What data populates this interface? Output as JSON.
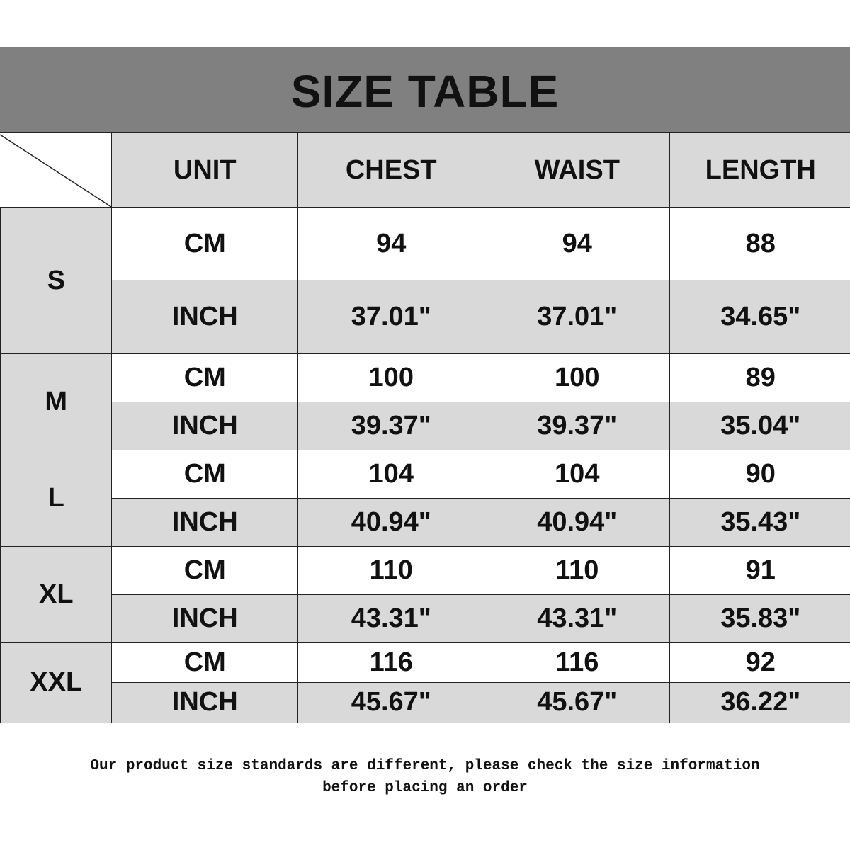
{
  "title": "SIZE TABLE",
  "colors": {
    "title_band": "#808080",
    "header_cell": "#d9d9d9",
    "inch_row": "#d9d9d9",
    "cm_row": "#ffffff"
  },
  "headers": [
    "UNIT",
    "CHEST",
    "WAIST",
    "LENGTH"
  ],
  "sizes": [
    {
      "size": "S",
      "rows": [
        [
          "CM",
          "94",
          "94",
          "88"
        ],
        [
          "INCH",
          "37.01\"",
          "37.01\"",
          "34.65\""
        ]
      ]
    },
    {
      "size": "M",
      "rows": [
        [
          "CM",
          "100",
          "100",
          "89"
        ],
        [
          "INCH",
          "39.37\"",
          "39.37\"",
          "35.04\""
        ]
      ]
    },
    {
      "size": "L",
      "rows": [
        [
          "CM",
          "104",
          "104",
          "90"
        ],
        [
          "INCH",
          "40.94\"",
          "40.94\"",
          "35.43\""
        ]
      ]
    },
    {
      "size": "XL",
      "rows": [
        [
          "CM",
          "110",
          "110",
          "91"
        ],
        [
          "INCH",
          "43.31\"",
          "43.31\"",
          "35.83\""
        ]
      ]
    },
    {
      "size": "XXL",
      "rows": [
        [
          "CM",
          "116",
          "116",
          "92"
        ],
        [
          "INCH",
          "45.67\"",
          "45.67\"",
          "36.22\""
        ]
      ]
    }
  ],
  "footer": {
    "line1": "Our product size standards are different, please check the size information",
    "line2": "before placing an order"
  }
}
